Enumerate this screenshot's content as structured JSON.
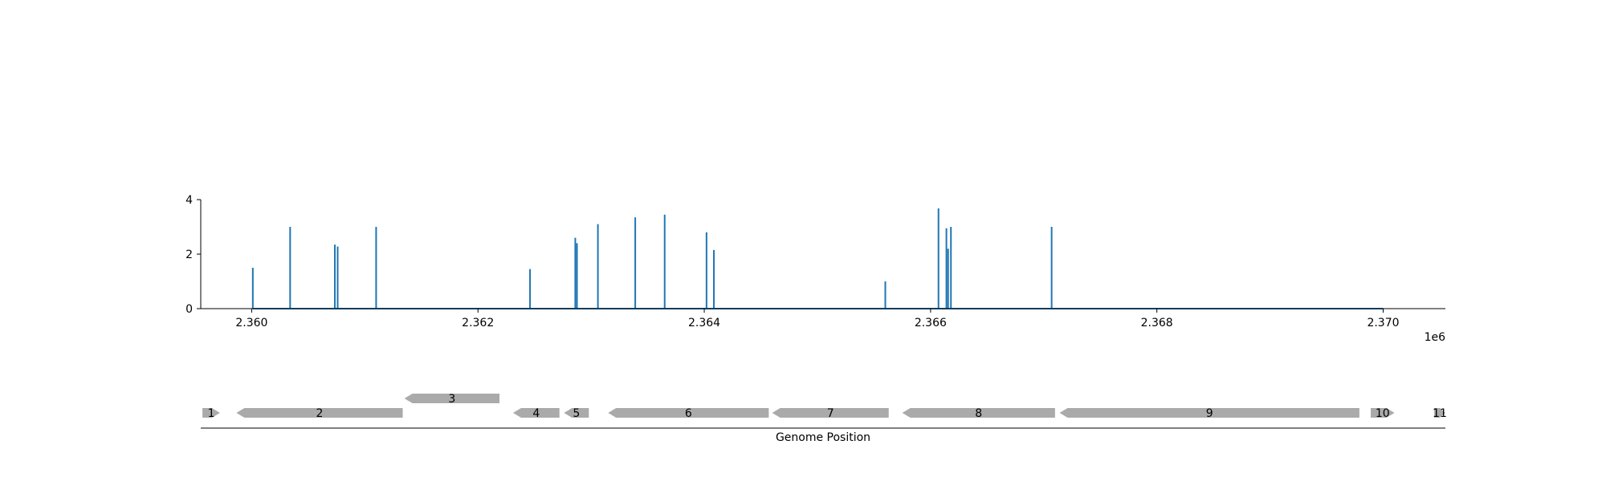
{
  "chart_data": [
    {
      "type": "bar",
      "title": "",
      "xlabel": "",
      "ylabel": "",
      "x_offset_label": "1e6",
      "xlim": [
        2.35955,
        2.37055
      ],
      "ylim": [
        0,
        4
      ],
      "x_ticks": [
        2.36,
        2.362,
        2.364,
        2.366,
        2.368,
        2.37
      ],
      "x_tick_labels": [
        "2.360",
        "2.362",
        "2.364",
        "2.366",
        "2.368",
        "2.370"
      ],
      "y_ticks": [
        0,
        2,
        4
      ],
      "y_tick_labels": [
        "0",
        "2",
        "4"
      ],
      "baseline_range": [
        2.36001,
        2.37
      ],
      "color": "#1f77b4",
      "peaks": [
        {
          "x": 2.36001,
          "y": 1.5
        },
        {
          "x": 2.36034,
          "y": 3.0
        },
        {
          "x": 2.360735,
          "y": 2.35
        },
        {
          "x": 2.36076,
          "y": 2.28
        },
        {
          "x": 2.3611,
          "y": 3.0
        },
        {
          "x": 2.36246,
          "y": 1.45
        },
        {
          "x": 2.36286,
          "y": 2.6
        },
        {
          "x": 2.362875,
          "y": 2.4
        },
        {
          "x": 2.36306,
          "y": 3.1
        },
        {
          "x": 2.36339,
          "y": 3.35
        },
        {
          "x": 2.36365,
          "y": 3.45
        },
        {
          "x": 2.36402,
          "y": 2.8
        },
        {
          "x": 2.364085,
          "y": 2.15
        },
        {
          "x": 2.3656,
          "y": 1.0
        },
        {
          "x": 2.36607,
          "y": 3.68
        },
        {
          "x": 2.36614,
          "y": 2.95
        },
        {
          "x": 2.366155,
          "y": 2.2
        },
        {
          "x": 2.36618,
          "y": 3.0
        },
        {
          "x": 2.36707,
          "y": 3.0
        }
      ]
    },
    {
      "type": "gene-track",
      "xlabel": "Genome Position",
      "genes": [
        {
          "label": "1",
          "start": 2.359565,
          "end": 2.35972,
          "strand": "+",
          "row": 0
        },
        {
          "label": "2",
          "start": 2.359865,
          "end": 2.361335,
          "strand": "-",
          "row": 0
        },
        {
          "label": "3",
          "start": 2.36135,
          "end": 2.36219,
          "strand": "-",
          "row": 1
        },
        {
          "label": "4",
          "start": 2.36231,
          "end": 2.36272,
          "strand": "-",
          "row": 0
        },
        {
          "label": "5",
          "start": 2.36276,
          "end": 2.36298,
          "strand": "-",
          "row": 0
        },
        {
          "label": "6",
          "start": 2.36315,
          "end": 2.36457,
          "strand": "-",
          "row": 0
        },
        {
          "label": "7",
          "start": 2.3646,
          "end": 2.36563,
          "strand": "-",
          "row": 0
        },
        {
          "label": "8",
          "start": 2.36575,
          "end": 2.3671,
          "strand": "-",
          "row": 0
        },
        {
          "label": "9",
          "start": 2.36714,
          "end": 2.36979,
          "strand": "-",
          "row": 0
        },
        {
          "label": "10",
          "start": 2.36989,
          "end": 2.3701,
          "strand": "+",
          "row": 0
        },
        {
          "label": "11",
          "start": 2.37045,
          "end": 2.37055,
          "strand": "+",
          "row": 0
        }
      ],
      "gene_color": "#aaaaaa"
    }
  ]
}
